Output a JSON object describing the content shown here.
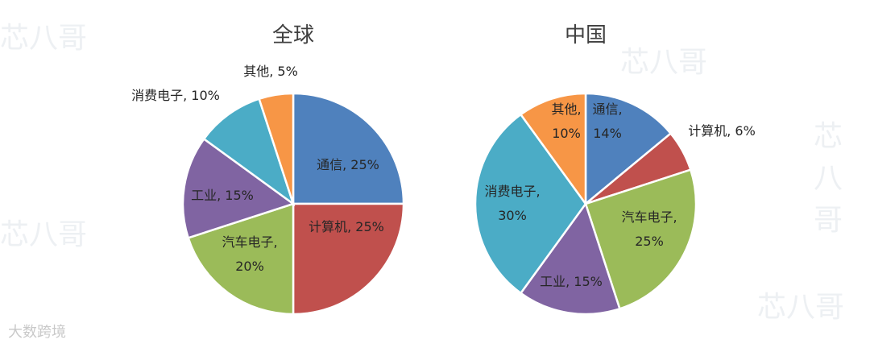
{
  "chart_data": [
    {
      "type": "pie",
      "title": "全球",
      "slices": [
        {
          "label": "通信, 25%",
          "value": 25,
          "color": "#4f81bd"
        },
        {
          "label": "计算机, 25%",
          "value": 25,
          "color": "#c0504d"
        },
        {
          "label": "汽车电子,\n20%",
          "value": 20,
          "color": "#9bbb59"
        },
        {
          "label": "工业, 15%",
          "value": 15,
          "color": "#8064a2"
        },
        {
          "label": "消费电子, 10%",
          "value": 10,
          "color": "#4bacc6"
        },
        {
          "label": "其他, 5%",
          "value": 5,
          "color": "#f79646"
        }
      ]
    },
    {
      "type": "pie",
      "title": "中国",
      "slices": [
        {
          "label": "通信,\n14%",
          "value": 14,
          "color": "#4f81bd"
        },
        {
          "label": "计算机, 6%",
          "value": 6,
          "color": "#c0504d"
        },
        {
          "label": "汽车电子,\n25%",
          "value": 25,
          "color": "#9bbb59"
        },
        {
          "label": "工业, 15%",
          "value": 15,
          "color": "#8064a2"
        },
        {
          "label": "消费电子,\n30%",
          "value": 30,
          "color": "#4bacc6"
        },
        {
          "label": "其他,\n10%",
          "value": 10,
          "color": "#f79646"
        }
      ]
    }
  ],
  "watermarks": {
    "brand": "芯八哥",
    "source": "大数跨境"
  }
}
